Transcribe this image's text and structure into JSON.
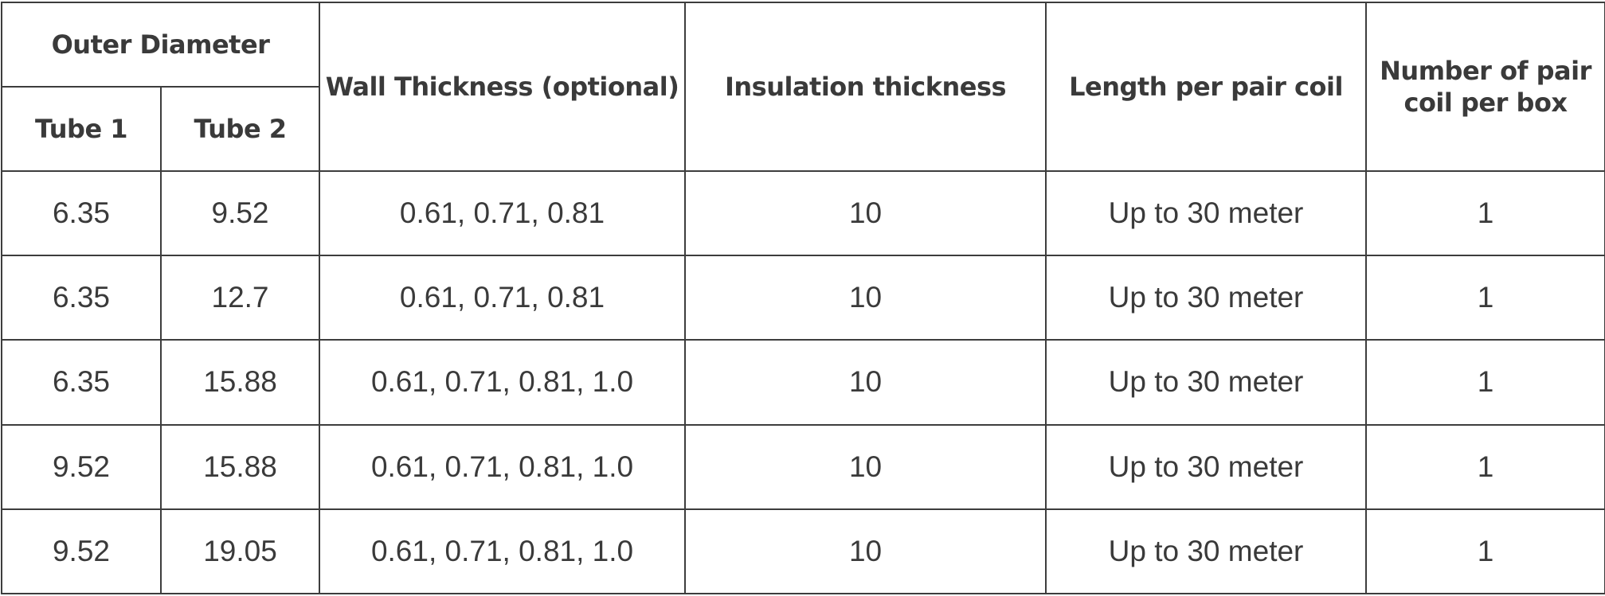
{
  "table": {
    "headers": {
      "outer_diameter": "Outer Diameter",
      "tube1": "Tube 1",
      "tube2": "Tube 2",
      "wall_thickness": "Wall Thickness (optional)",
      "insulation_thickness": "Insulation thickness",
      "length_per_pair_coil": "Length per pair coil",
      "number_per_box_line1": "Number of pair",
      "number_per_box_line2": "coil per box"
    },
    "rows": [
      {
        "tube1": "6.35",
        "tube2": "9.52",
        "wall": "0.61, 0.71, 0.81",
        "insulation": "10",
        "length": "Up to 30 meter",
        "count": "1"
      },
      {
        "tube1": "6.35",
        "tube2": "12.7",
        "wall": "0.61, 0.71, 0.81",
        "insulation": "10",
        "length": "Up to 30 meter",
        "count": "1"
      },
      {
        "tube1": "6.35",
        "tube2": "15.88",
        "wall": "0.61, 0.71, 0.81, 1.0",
        "insulation": "10",
        "length": "Up to 30 meter",
        "count": "1"
      },
      {
        "tube1": "9.52",
        "tube2": "15.88",
        "wall": "0.61, 0.71, 0.81, 1.0",
        "insulation": "10",
        "length": "Up to 30 meter",
        "count": "1"
      },
      {
        "tube1": "9.52",
        "tube2": "19.05",
        "wall": "0.61, 0.71, 0.81, 1.0",
        "insulation": "10",
        "length": "Up to 30 meter",
        "count": "1"
      }
    ]
  }
}
